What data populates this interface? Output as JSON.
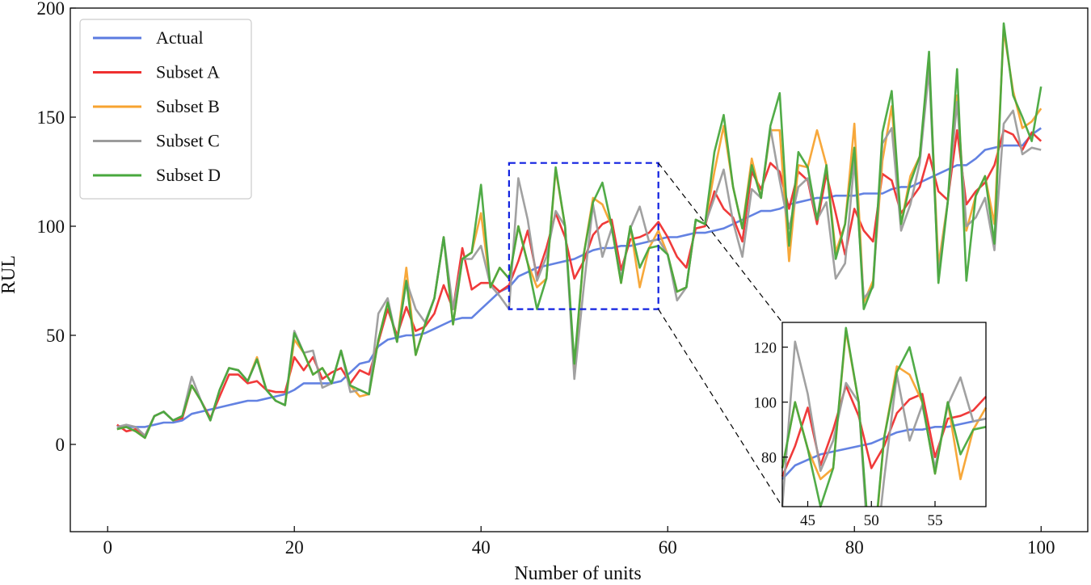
{
  "chart_data": {
    "type": "line",
    "title": "",
    "xlabel": "Number of units",
    "ylabel": "RUL",
    "xlim": [
      -4,
      105
    ],
    "ylim": [
      -40,
      200
    ],
    "xticks": [
      0,
      20,
      40,
      60,
      80,
      100
    ],
    "yticks": [
      0,
      50,
      100,
      150,
      200
    ],
    "grid": false,
    "legend_position": "top-left",
    "colors": {
      "Actual": "#5b7be0",
      "Subset A": "#ef2f2f",
      "Subset B": "#f7a330",
      "Subset C": "#9c9c9c",
      "Subset D": "#48a83e",
      "zoom_box": "#1020e0"
    },
    "x_start": 1,
    "series": [
      {
        "name": "Actual",
        "values": [
          8,
          8,
          8,
          8,
          9,
          10,
          10,
          11,
          14,
          15,
          16,
          17,
          18,
          19,
          20,
          20,
          21,
          22,
          23,
          25,
          28,
          28,
          28,
          28,
          29,
          33,
          37,
          38,
          45,
          48,
          49,
          50,
          50,
          51,
          53,
          55,
          57,
          58,
          58,
          62,
          66,
          70,
          72,
          77,
          79,
          81,
          82,
          83,
          84,
          85,
          87,
          89,
          90,
          90,
          91,
          91,
          92,
          93,
          94,
          95,
          95,
          96,
          97,
          97,
          98,
          99,
          101,
          103,
          105,
          107,
          107,
          108,
          110,
          111,
          112,
          113,
          113,
          114,
          114,
          114,
          115,
          115,
          115,
          117,
          118,
          118,
          120,
          122,
          124,
          126,
          128,
          128,
          131,
          135,
          136,
          137,
          137,
          137,
          142,
          145
        ]
      },
      {
        "name": "Subset A",
        "values": [
          9,
          6,
          7,
          4,
          13,
          15,
          11,
          12,
          27,
          20,
          12,
          22,
          32,
          32,
          28,
          29,
          25,
          24,
          24,
          40,
          34,
          40,
          30,
          33,
          35,
          28,
          34,
          32,
          47,
          62,
          50,
          63,
          52,
          54,
          60,
          73,
          62,
          90,
          71,
          74,
          74,
          70,
          73,
          84,
          98,
          77,
          90,
          106,
          95,
          76,
          84,
          96,
          101,
          103,
          80,
          94,
          95,
          97,
          102,
          95,
          86,
          81,
          99,
          100,
          116,
          108,
          104,
          93,
          125,
          117,
          129,
          125,
          108,
          125,
          121,
          101,
          124,
          106,
          87,
          108,
          98,
          93,
          124,
          121,
          106,
          112,
          118,
          133,
          116,
          112,
          144,
          110,
          116,
          120,
          128,
          144,
          142,
          135,
          143,
          139
        ]
      },
      {
        "name": "Subset B",
        "values": [
          7,
          8,
          6,
          3,
          13,
          15,
          11,
          13,
          27,
          20,
          11,
          25,
          35,
          34,
          29,
          40,
          25,
          20,
          18,
          48,
          42,
          32,
          35,
          28,
          43,
          27,
          22,
          23,
          48,
          65,
          47,
          81,
          41,
          55,
          67,
          95,
          55,
          85,
          88,
          106,
          72,
          81,
          76,
          100,
          83,
          72,
          76,
          126,
          100,
          35,
          87,
          113,
          110,
          100,
          74,
          100,
          72,
          90,
          98,
          87,
          70,
          72,
          103,
          101,
          125,
          146,
          118,
          99,
          131,
          113,
          144,
          144,
          84,
          128,
          127,
          144,
          128,
          88,
          101,
          147,
          65,
          75,
          130,
          155,
          101,
          123,
          132,
          175,
          82,
          111,
          160,
          98,
          114,
          123,
          101,
          190,
          162,
          145,
          148,
          154
        ]
      },
      {
        "name": "Subset C",
        "values": [
          8,
          9,
          8,
          4,
          13,
          15,
          11,
          13,
          31,
          20,
          11,
          25,
          35,
          34,
          29,
          39,
          25,
          20,
          18,
          52,
          42,
          43,
          26,
          28,
          43,
          24,
          25,
          23,
          60,
          67,
          47,
          75,
          62,
          56,
          67,
          95,
          62,
          85,
          85,
          91,
          73,
          68,
          62,
          122,
          103,
          75,
          86,
          107,
          100,
          30,
          72,
          110,
          86,
          99,
          76,
          99,
          109,
          93,
          94,
          87,
          66,
          72,
          103,
          101,
          113,
          126,
          102,
          86,
          117,
          113,
          145,
          121,
          99,
          118,
          122,
          103,
          111,
          76,
          83,
          130,
          67,
          72,
          138,
          145,
          98,
          110,
          129,
          172,
          77,
          111,
          157,
          100,
          104,
          113,
          89,
          147,
          153,
          133,
          136,
          135
        ]
      },
      {
        "name": "Subset D",
        "values": [
          7,
          8,
          6,
          3,
          13,
          15,
          11,
          13,
          27,
          20,
          11,
          25,
          35,
          34,
          29,
          39,
          25,
          20,
          18,
          51,
          42,
          32,
          35,
          28,
          43,
          27,
          25,
          23,
          48,
          65,
          47,
          75,
          41,
          55,
          67,
          95,
          55,
          85,
          88,
          119,
          72,
          81,
          76,
          100,
          83,
          62,
          76,
          127,
          100,
          37,
          87,
          111,
          120,
          100,
          74,
          100,
          81,
          90,
          91,
          87,
          70,
          72,
          103,
          101,
          134,
          151,
          118,
          99,
          128,
          113,
          146,
          161,
          91,
          134,
          127,
          103,
          128,
          85,
          101,
          136,
          62,
          73,
          143,
          162,
          101,
          120,
          132,
          180,
          74,
          111,
          172,
          75,
          114,
          123,
          92,
          193,
          160,
          150,
          139,
          164
        ]
      }
    ],
    "inset": {
      "xlim": [
        43,
        59
      ],
      "ylim": [
        62,
        129
      ],
      "xticks": [
        45,
        50,
        55
      ],
      "yticks": [
        80,
        100,
        120
      ]
    }
  }
}
